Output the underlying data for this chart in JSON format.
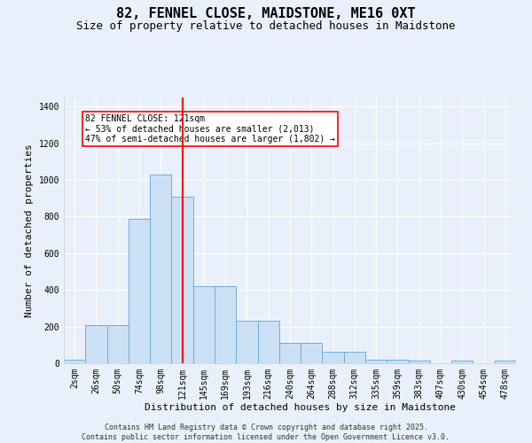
{
  "title": "82, FENNEL CLOSE, MAIDSTONE, ME16 0XT",
  "subtitle": "Size of property relative to detached houses in Maidstone",
  "xlabel": "Distribution of detached houses by size in Maidstone",
  "ylabel": "Number of detached properties",
  "bin_labels": [
    "2sqm",
    "26sqm",
    "50sqm",
    "74sqm",
    "98sqm",
    "121sqm",
    "145sqm",
    "169sqm",
    "193sqm",
    "216sqm",
    "240sqm",
    "264sqm",
    "288sqm",
    "312sqm",
    "335sqm",
    "359sqm",
    "383sqm",
    "407sqm",
    "430sqm",
    "454sqm",
    "478sqm"
  ],
  "values": [
    20,
    210,
    210,
    790,
    1030,
    910,
    420,
    420,
    230,
    230,
    110,
    110,
    65,
    65,
    20,
    20,
    15,
    0,
    15,
    0,
    15
  ],
  "bar_color": "#cce0f5",
  "bar_edge_color": "#6baed6",
  "vline_index": 5,
  "vline_color": "red",
  "annotation_text": "82 FENNEL CLOSE: 121sqm\n← 53% of detached houses are smaller (2,013)\n47% of semi-detached houses are larger (1,802) →",
  "annotation_box_color": "white",
  "annotation_box_edge": "red",
  "ylim": [
    0,
    1450
  ],
  "yticks": [
    0,
    200,
    400,
    600,
    800,
    1000,
    1200,
    1400
  ],
  "background_color": "#eaf0fb",
  "footer_line1": "Contains HM Land Registry data © Crown copyright and database right 2025.",
  "footer_line2": "Contains public sector information licensed under the Open Government Licence v3.0.",
  "title_fontsize": 11,
  "subtitle_fontsize": 9,
  "axis_label_fontsize": 8,
  "tick_fontsize": 7,
  "ann_fontsize": 7
}
